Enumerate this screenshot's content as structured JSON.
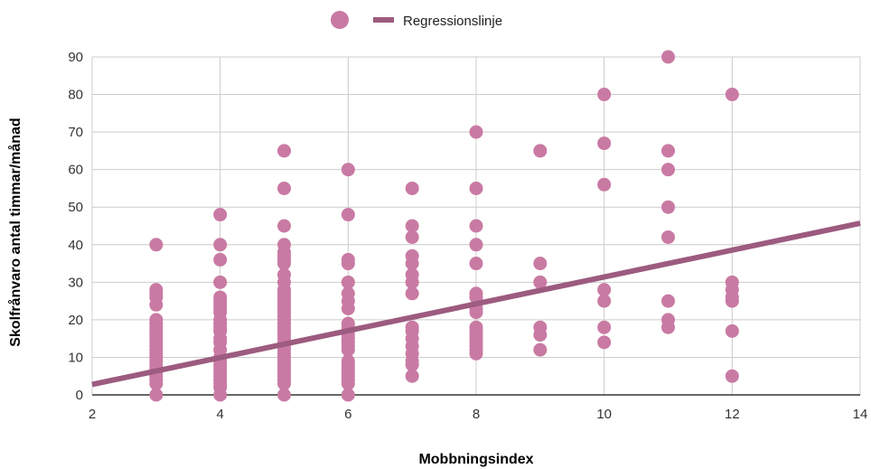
{
  "chart_data": {
    "type": "scatter",
    "xlabel": "Mobbningsindex",
    "ylabel": "Skolfrånvaro antal timmar/månad",
    "xlim": [
      2,
      14
    ],
    "ylim": [
      0,
      90
    ],
    "xticks": [
      2,
      4,
      6,
      8,
      10,
      12,
      14
    ],
    "yticks": [
      0,
      10,
      20,
      30,
      40,
      50,
      60,
      70,
      80,
      90
    ],
    "grid": true,
    "legend_position": "top",
    "colors": {
      "points": "#c97aa3",
      "regression": "#9c5b7f",
      "grid": "#cccccc",
      "axis": "#333333"
    },
    "series": [
      {
        "type": "scatter",
        "points": [
          [
            3,
            40
          ],
          [
            3,
            28
          ],
          [
            3,
            27
          ],
          [
            3,
            26
          ],
          [
            3,
            24
          ],
          [
            3,
            20
          ],
          [
            3,
            19
          ],
          [
            3,
            18
          ],
          [
            3,
            17
          ],
          [
            3,
            16
          ],
          [
            3,
            15
          ],
          [
            3,
            14
          ],
          [
            3,
            13
          ],
          [
            3,
            12
          ],
          [
            3,
            11
          ],
          [
            3,
            10
          ],
          [
            3,
            9
          ],
          [
            3,
            8
          ],
          [
            3,
            7
          ],
          [
            3,
            6
          ],
          [
            3,
            5
          ],
          [
            3,
            4
          ],
          [
            3,
            3
          ],
          [
            3,
            0
          ],
          [
            4,
            48
          ],
          [
            4,
            40
          ],
          [
            4,
            36
          ],
          [
            4,
            30
          ],
          [
            4,
            26
          ],
          [
            4,
            25
          ],
          [
            4,
            24
          ],
          [
            4,
            23
          ],
          [
            4,
            22
          ],
          [
            4,
            20
          ],
          [
            4,
            19
          ],
          [
            4,
            18
          ],
          [
            4,
            17
          ],
          [
            4,
            15
          ],
          [
            4,
            14
          ],
          [
            4,
            12
          ],
          [
            4,
            10
          ],
          [
            4,
            9
          ],
          [
            4,
            8
          ],
          [
            4,
            7
          ],
          [
            4,
            6
          ],
          [
            4,
            5
          ],
          [
            4,
            4
          ],
          [
            4,
            3
          ],
          [
            4,
            2
          ],
          [
            4,
            0
          ],
          [
            5,
            65
          ],
          [
            5,
            55
          ],
          [
            5,
            45
          ],
          [
            5,
            40
          ],
          [
            5,
            38
          ],
          [
            5,
            37
          ],
          [
            5,
            36
          ],
          [
            5,
            35
          ],
          [
            5,
            32
          ],
          [
            5,
            30
          ],
          [
            5,
            28
          ],
          [
            5,
            27
          ],
          [
            5,
            26
          ],
          [
            5,
            25
          ],
          [
            5,
            24
          ],
          [
            5,
            23
          ],
          [
            5,
            22
          ],
          [
            5,
            21
          ],
          [
            5,
            20
          ],
          [
            5,
            19
          ],
          [
            5,
            18
          ],
          [
            5,
            17
          ],
          [
            5,
            16
          ],
          [
            5,
            15
          ],
          [
            5,
            14
          ],
          [
            5,
            13
          ],
          [
            5,
            12
          ],
          [
            5,
            11
          ],
          [
            5,
            10
          ],
          [
            5,
            9
          ],
          [
            5,
            8
          ],
          [
            5,
            7
          ],
          [
            5,
            6
          ],
          [
            5,
            5
          ],
          [
            5,
            4
          ],
          [
            5,
            3
          ],
          [
            5,
            0
          ],
          [
            6,
            60
          ],
          [
            6,
            48
          ],
          [
            6,
            36
          ],
          [
            6,
            35
          ],
          [
            6,
            30
          ],
          [
            6,
            27
          ],
          [
            6,
            25
          ],
          [
            6,
            23
          ],
          [
            6,
            19
          ],
          [
            6,
            18
          ],
          [
            6,
            17
          ],
          [
            6,
            16
          ],
          [
            6,
            15
          ],
          [
            6,
            14
          ],
          [
            6,
            13
          ],
          [
            6,
            12
          ],
          [
            6,
            9
          ],
          [
            6,
            8
          ],
          [
            6,
            7
          ],
          [
            6,
            6
          ],
          [
            6,
            5
          ],
          [
            6,
            4
          ],
          [
            6,
            3
          ],
          [
            6,
            0
          ],
          [
            7,
            55
          ],
          [
            7,
            45
          ],
          [
            7,
            42
          ],
          [
            7,
            37
          ],
          [
            7,
            35
          ],
          [
            7,
            32
          ],
          [
            7,
            30
          ],
          [
            7,
            27
          ],
          [
            7,
            18
          ],
          [
            7,
            17
          ],
          [
            7,
            15
          ],
          [
            7,
            13
          ],
          [
            7,
            11
          ],
          [
            7,
            9
          ],
          [
            7,
            8
          ],
          [
            7,
            5
          ],
          [
            8,
            70
          ],
          [
            8,
            55
          ],
          [
            8,
            45
          ],
          [
            8,
            40
          ],
          [
            8,
            35
          ],
          [
            8,
            27
          ],
          [
            8,
            26
          ],
          [
            8,
            23
          ],
          [
            8,
            22
          ],
          [
            8,
            18
          ],
          [
            8,
            17
          ],
          [
            8,
            16
          ],
          [
            8,
            15
          ],
          [
            8,
            14
          ],
          [
            8,
            13
          ],
          [
            8,
            12
          ],
          [
            8,
            11
          ],
          [
            9,
            65
          ],
          [
            9,
            35
          ],
          [
            9,
            30
          ],
          [
            9,
            18
          ],
          [
            9,
            16
          ],
          [
            9,
            12
          ],
          [
            10,
            80
          ],
          [
            10,
            67
          ],
          [
            10,
            56
          ],
          [
            10,
            28
          ],
          [
            10,
            25
          ],
          [
            10,
            18
          ],
          [
            10,
            14
          ],
          [
            11,
            90
          ],
          [
            11,
            65
          ],
          [
            11,
            60
          ],
          [
            11,
            50
          ],
          [
            11,
            42
          ],
          [
            11,
            25
          ],
          [
            11,
            20
          ],
          [
            11,
            18
          ],
          [
            12,
            80
          ],
          [
            12,
            30
          ],
          [
            12,
            28
          ],
          [
            12,
            26
          ],
          [
            12,
            25
          ],
          [
            12,
            17
          ],
          [
            12,
            5
          ]
        ]
      },
      {
        "name": "Regressionslinje",
        "type": "line",
        "points": [
          [
            2,
            5.2
          ],
          [
            14,
            45.7
          ]
        ]
      }
    ]
  }
}
